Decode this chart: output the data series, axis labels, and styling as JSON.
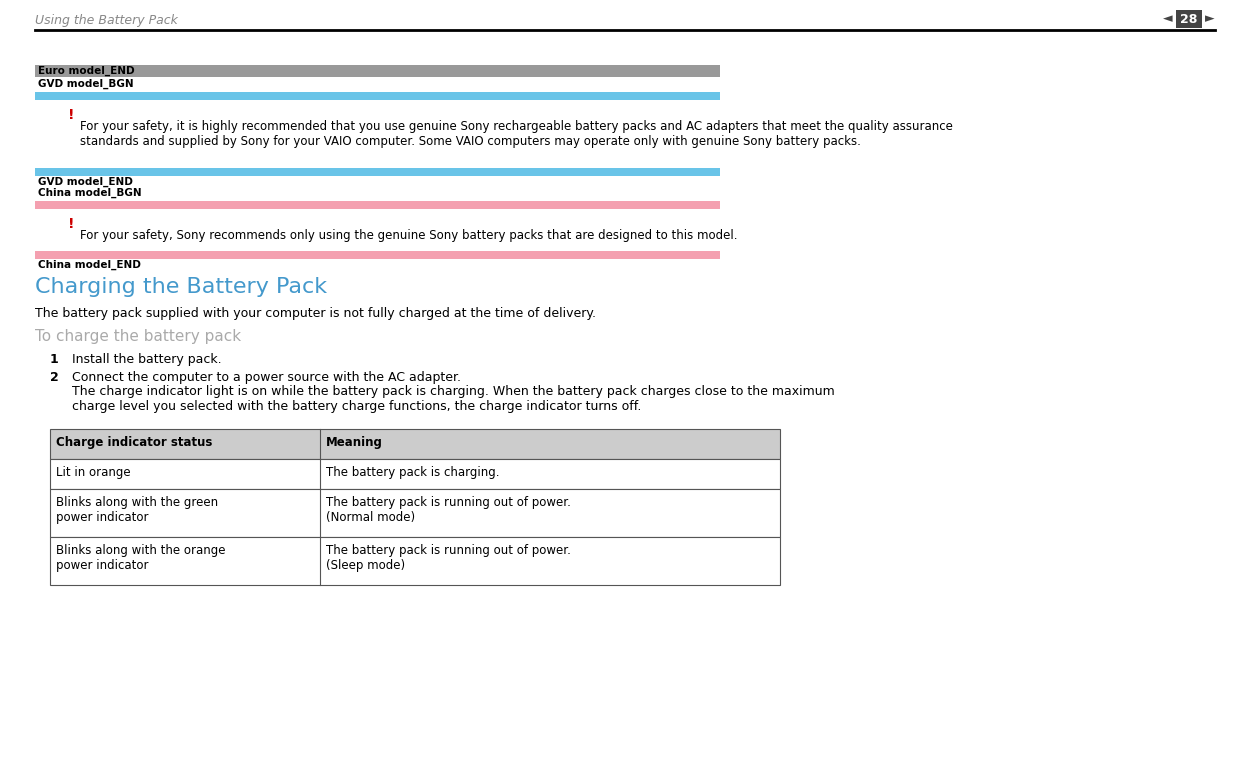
{
  "bg_color": "#ffffff",
  "header_text": "Using the Battery Pack",
  "page_number": "28",
  "header_line_color": "#000000",
  "gray_bar_color": "#999999",
  "blue_bar_color": "#69c4e8",
  "pink_bar_color": "#f4a0b0",
  "exclamation_color": "#cc0000",
  "heading_color": "#4499cc",
  "text_color": "#000000",
  "label_gray": "Euro model_END",
  "label_gvd_bgn": "GVD model_BGN",
  "label_gvd_end": "GVD model_END",
  "label_china_bgn": "China model_BGN",
  "label_china_end": "China model_END",
  "warning1": "For your safety, it is highly recommended that you use genuine Sony rechargeable battery packs and AC adapters that meet the quality assurance\nstandards and supplied by Sony for your VAIO computer. Some VAIO computers may operate only with genuine Sony battery packs.",
  "warning2": "For your safety, Sony recommends only using the genuine Sony battery packs that are designed to this model.",
  "section_title": "Charging the Battery Pack",
  "intro_text": "The battery pack supplied with your computer is not fully charged at the time of delivery.",
  "subheading": "To charge the battery pack",
  "step1": "Install the battery pack.",
  "step2_line1": "Connect the computer to a power source with the AC adapter.",
  "step2_line2": "The charge indicator light is on while the battery pack is charging. When the battery pack charges close to the maximum\ncharge level you selected with the battery charge functions, the charge indicator turns off.",
  "table_header_col1": "Charge indicator status",
  "table_header_col2": "Meaning",
  "table_rows": [
    [
      "Lit in orange",
      "The battery pack is charging."
    ],
    [
      "Blinks along with the green\npower indicator",
      "The battery pack is running out of power.\n(Normal mode)"
    ],
    [
      "Blinks along with the orange\npower indicator",
      "The battery pack is running out of power.\n(Sleep mode)"
    ]
  ],
  "table_border_color": "#555555",
  "arrow_left": "◄",
  "arrow_right": "►"
}
